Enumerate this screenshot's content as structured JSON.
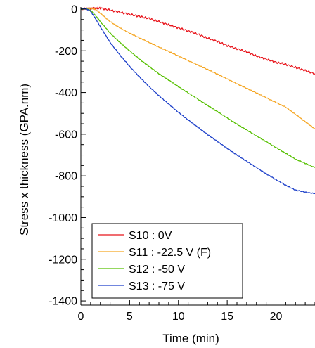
{
  "chart_data": {
    "type": "line",
    "title": "",
    "xlabel": "Time (min)",
    "ylabel": "Stress x thickness (GPA.nm)",
    "xlim": [
      0,
      24
    ],
    "ylim": [
      -1420,
      10
    ],
    "x_ticks": [
      0,
      5,
      10,
      15,
      20
    ],
    "y_ticks": [
      0,
      -200,
      -400,
      -600,
      -800,
      -1000,
      -1200,
      -1400
    ],
    "grid": false,
    "legend_position": "bottom-left",
    "series": [
      {
        "name": "S10 : 0V",
        "color": "#e8141b",
        "x": [
          0,
          0.5,
          1,
          1.5,
          2,
          3,
          4,
          5,
          6,
          7,
          8,
          9,
          10,
          11,
          12,
          13,
          14,
          15,
          16,
          17,
          18,
          19,
          20,
          21,
          22,
          23,
          24
        ],
        "y": [
          0,
          2,
          3,
          4,
          5,
          -5,
          -15,
          -25,
          -35,
          -45,
          -60,
          -75,
          -90,
          -105,
          -120,
          -140,
          -155,
          -175,
          -190,
          -205,
          -225,
          -240,
          -255,
          -265,
          -280,
          -295,
          -310
        ]
      },
      {
        "name": "S11 : -22.5 V (F)",
        "color": "#f5a623",
        "x": [
          0,
          0.5,
          1,
          1.5,
          2,
          3,
          4,
          5,
          6,
          7,
          8,
          9,
          10,
          11,
          12,
          13,
          14,
          15,
          16,
          17,
          18,
          19,
          20,
          21,
          22,
          23,
          24
        ],
        "y": [
          0,
          3,
          5,
          -2,
          -20,
          -60,
          -90,
          -115,
          -138,
          -160,
          -182,
          -203,
          -225,
          -247,
          -268,
          -290,
          -312,
          -335,
          -358,
          -380,
          -402,
          -425,
          -448,
          -470,
          -505,
          -540,
          -575
        ]
      },
      {
        "name": "S12 : -50 V",
        "color": "#56c000",
        "x": [
          0,
          0.5,
          1,
          1.5,
          2,
          3,
          4,
          5,
          6,
          7,
          8,
          9,
          10,
          11,
          12,
          13,
          14,
          15,
          16,
          17,
          18,
          19,
          20,
          21,
          22,
          23,
          24
        ],
        "y": [
          0,
          2,
          -5,
          -30,
          -60,
          -115,
          -160,
          -200,
          -240,
          -275,
          -310,
          -340,
          -372,
          -402,
          -432,
          -462,
          -492,
          -522,
          -552,
          -580,
          -608,
          -636,
          -664,
          -692,
          -720,
          -740,
          -760
        ]
      },
      {
        "name": "S13 : -75 V",
        "color": "#1c3fc9",
        "x": [
          0,
          0.5,
          1,
          1.5,
          2,
          3,
          4,
          5,
          6,
          7,
          8,
          9,
          10,
          11,
          12,
          13,
          14,
          15,
          16,
          17,
          18,
          19,
          20,
          21,
          22,
          23,
          24
        ],
        "y": [
          0,
          2,
          -10,
          -45,
          -85,
          -160,
          -220,
          -275,
          -325,
          -372,
          -415,
          -455,
          -495,
          -532,
          -567,
          -602,
          -635,
          -668,
          -700,
          -730,
          -760,
          -790,
          -818,
          -845,
          -868,
          -878,
          -885
        ]
      }
    ]
  }
}
